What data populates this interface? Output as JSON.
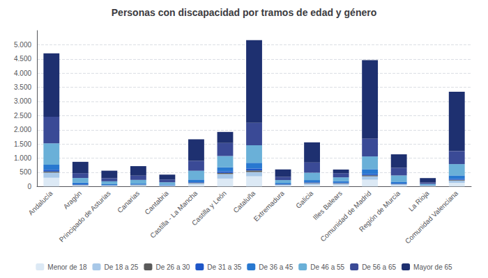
{
  "chart_data": {
    "type": "bar",
    "title": "Personas con discapacidad por tramos de edad y género",
    "stacked": true,
    "grid": true,
    "legend": "bottom",
    "categories": [
      "Andalucía",
      "Aragón",
      "Principado de Asturias",
      "Canarias",
      "Cantabria",
      "Castilla - La Mancha",
      "Castilla y León",
      "Cataluña",
      "Extremadura",
      "Galicia",
      "Illes Balears",
      "Comunidad de Madrid",
      "Región de Murcia",
      "La Rioja",
      "Comunidad Valenciana"
    ],
    "series": [
      {
        "name": "Menor de 18",
        "color": "#dce9f5",
        "values": [
          310,
          20,
          20,
          25,
          15,
          70,
          280,
          360,
          35,
          60,
          60,
          240,
          45,
          20,
          130
        ]
      },
      {
        "name": "De 18 a 25",
        "color": "#a8c8e8",
        "values": [
          180,
          30,
          15,
          25,
          15,
          50,
          160,
          150,
          25,
          50,
          40,
          120,
          35,
          8,
          80
        ]
      },
      {
        "name": "De 26 a 30",
        "color": "#5a5a5a",
        "values": [
          40,
          10,
          8,
          8,
          5,
          15,
          40,
          55,
          10,
          15,
          15,
          35,
          10,
          4,
          25
        ]
      },
      {
        "name": "De 31 a 35",
        "color": "#1e56c8",
        "values": [
          60,
          20,
          10,
          10,
          8,
          20,
          55,
          70,
          12,
          22,
          18,
          45,
          15,
          5,
          35
        ]
      },
      {
        "name": "De 36 a 45",
        "color": "#2878d0",
        "values": [
          180,
          60,
          30,
          35,
          25,
          90,
          140,
          200,
          45,
          80,
          60,
          170,
          65,
          15,
          120
        ]
      },
      {
        "name": "De 46 a 55",
        "color": "#6ab0d8",
        "values": [
          750,
          160,
          100,
          130,
          80,
          310,
          400,
          620,
          100,
          260,
          130,
          450,
          220,
          40,
          400
        ]
      },
      {
        "name": "De 56 a 65",
        "color": "#3a4a96",
        "values": [
          940,
          170,
          110,
          150,
          100,
          350,
          460,
          790,
          110,
          360,
          145,
          630,
          270,
          50,
          460
        ]
      },
      {
        "name": "Mayor de 65",
        "color": "#1e3070",
        "values": [
          2240,
          400,
          265,
          335,
          170,
          760,
          390,
          2920,
          265,
          710,
          130,
          2770,
          475,
          155,
          2090
        ]
      }
    ],
    "ylim": [
      0,
      5500
    ],
    "yticks": [
      0,
      500,
      {
        "value": 1000,
        "label": "1.000"
      },
      {
        "value": 1500,
        "label": "1.500"
      },
      {
        "value": 2000,
        "label": "2.000"
      },
      {
        "value": 2500,
        "label": "2.500"
      },
      {
        "value": 3000,
        "label": "3.000"
      },
      {
        "value": 3500,
        "label": "3.500"
      },
      {
        "value": 4000,
        "label": "4.000"
      },
      {
        "value": 4500,
        "label": "4.500"
      },
      {
        "value": 5000,
        "label": "5.000"
      }
    ]
  }
}
